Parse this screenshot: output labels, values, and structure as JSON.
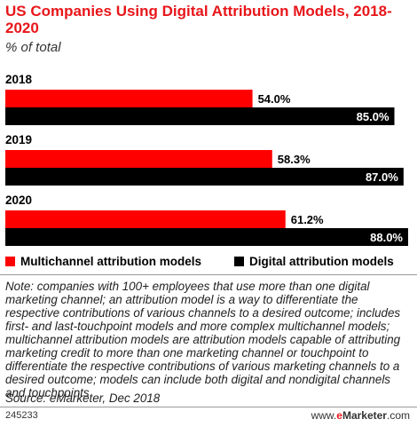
{
  "colors": {
    "title": "#e8161a",
    "multichannel": "#ff0000",
    "digital": "#000000"
  },
  "header": {
    "title": "US Companies Using Digital Attribution Models, 2018-2020",
    "subtitle": "% of total"
  },
  "chart_data": {
    "type": "bar",
    "orientation": "horizontal",
    "categories": [
      "2018",
      "2019",
      "2020"
    ],
    "series": [
      {
        "name": "Multichannel attribution models",
        "values": [
          54.0,
          58.3,
          61.2
        ],
        "labels": [
          "54.0%",
          "58.3%",
          "61.2%"
        ]
      },
      {
        "name": "Digital attribution models",
        "values": [
          85.0,
          87.0,
          88.0
        ],
        "labels": [
          "85.0%",
          "87.0%",
          "88.0%"
        ]
      }
    ],
    "legend_position": "bottom",
    "grid": false
  },
  "legend": {
    "multichannel_label": "Multichannel attribution models",
    "digital_label": "Digital attribution models"
  },
  "footer": {
    "note": "Note: companies with 100+ employees that use more than one digital marketing channel; an attribution model is a way to differentiate the respective contributions of various channels to a desired outcome; includes first- and last-touchpoint models and more complex multichannel models; multichannel attribution models are attribution models capable of attributing marketing credit to more than one marketing channel or touchpoint to differentiate the respective contributions of various marketing channels to a desired outcome; models can include both digital and nondigital channels and touchpoints",
    "source": "Source: eMarketer, Dec 2018",
    "chart_id": "245233",
    "brand_prefix": "www.",
    "brand_e": "e",
    "brand_name": "Marketer",
    "brand_suffix": ".com"
  }
}
